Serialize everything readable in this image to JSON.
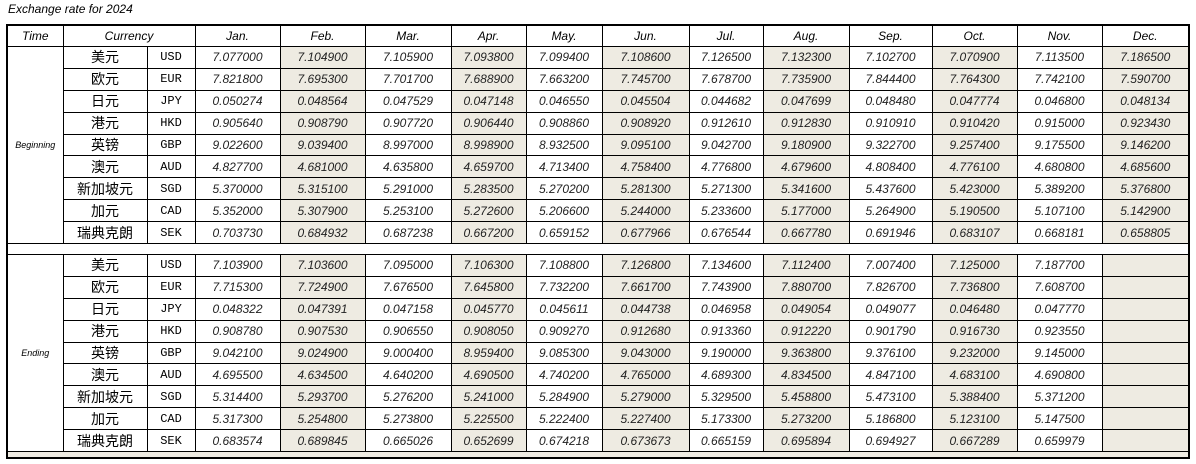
{
  "title": "Exchange rate for 2024",
  "headers": {
    "time": "Time",
    "currency": "Currency"
  },
  "months": [
    "Jan.",
    "Feb.",
    "Mar.",
    "Apr.",
    "May.",
    "Jun.",
    "Jul.",
    "Aug.",
    "Sep.",
    "Oct.",
    "Nov.",
    "Dec."
  ],
  "colors": {
    "shaded_column": "#eeebe2"
  },
  "sections": [
    {
      "label": "Beginning",
      "rows": [
        {
          "name": "美元",
          "code": "USD",
          "values": [
            "7.077000",
            "7.104900",
            "7.105900",
            "7.093800",
            "7.099400",
            "7.108600",
            "7.126500",
            "7.132300",
            "7.102700",
            "7.070900",
            "7.113500",
            "7.186500"
          ]
        },
        {
          "name": "欧元",
          "code": "EUR",
          "values": [
            "7.821800",
            "7.695300",
            "7.701700",
            "7.688900",
            "7.663200",
            "7.745700",
            "7.678700",
            "7.735900",
            "7.844400",
            "7.764300",
            "7.742100",
            "7.590700"
          ]
        },
        {
          "name": "日元",
          "code": "JPY",
          "values": [
            "0.050274",
            "0.048564",
            "0.047529",
            "0.047148",
            "0.046550",
            "0.045504",
            "0.044682",
            "0.047699",
            "0.048480",
            "0.047774",
            "0.046800",
            "0.048134"
          ]
        },
        {
          "name": "港元",
          "code": "HKD",
          "values": [
            "0.905640",
            "0.908790",
            "0.907720",
            "0.906440",
            "0.908860",
            "0.908920",
            "0.912610",
            "0.912830",
            "0.910910",
            "0.910420",
            "0.915000",
            "0.923430"
          ]
        },
        {
          "name": "英镑",
          "code": "GBP",
          "values": [
            "9.022600",
            "9.039400",
            "8.997000",
            "8.998900",
            "8.932500",
            "9.095100",
            "9.042700",
            "9.180900",
            "9.322700",
            "9.257400",
            "9.175500",
            "9.146200"
          ]
        },
        {
          "name": "澳元",
          "code": "AUD",
          "values": [
            "4.827700",
            "4.681000",
            "4.635800",
            "4.659700",
            "4.713400",
            "4.758400",
            "4.776800",
            "4.679600",
            "4.808400",
            "4.776100",
            "4.680800",
            "4.685600"
          ]
        },
        {
          "name": "新加坡元",
          "code": "SGD",
          "values": [
            "5.370000",
            "5.315100",
            "5.291000",
            "5.283500",
            "5.270200",
            "5.281300",
            "5.271300",
            "5.341600",
            "5.437600",
            "5.423000",
            "5.389200",
            "5.376800"
          ]
        },
        {
          "name": "加元",
          "code": "CAD",
          "values": [
            "5.352000",
            "5.307900",
            "5.253100",
            "5.272600",
            "5.206600",
            "5.244000",
            "5.233600",
            "5.177000",
            "5.264900",
            "5.190500",
            "5.107100",
            "5.142900"
          ]
        },
        {
          "name": "瑞典克朗",
          "code": "SEK",
          "values": [
            "0.703730",
            "0.684932",
            "0.687238",
            "0.667200",
            "0.659152",
            "0.677966",
            "0.676544",
            "0.667780",
            "0.691946",
            "0.683107",
            "0.668181",
            "0.658805"
          ]
        }
      ]
    },
    {
      "label": "Ending",
      "rows": [
        {
          "name": "美元",
          "code": "USD",
          "values": [
            "7.103900",
            "7.103600",
            "7.095000",
            "7.106300",
            "7.108800",
            "7.126800",
            "7.134600",
            "7.112400",
            "7.007400",
            "7.125000",
            "7.187700",
            ""
          ]
        },
        {
          "name": "欧元",
          "code": "EUR",
          "values": [
            "7.715300",
            "7.724900",
            "7.676500",
            "7.645800",
            "7.732200",
            "7.661700",
            "7.743900",
            "7.880700",
            "7.826700",
            "7.736800",
            "7.608700",
            ""
          ]
        },
        {
          "name": "日元",
          "code": "JPY",
          "values": [
            "0.048322",
            "0.047391",
            "0.047158",
            "0.045770",
            "0.045611",
            "0.044738",
            "0.046958",
            "0.049054",
            "0.049077",
            "0.046480",
            "0.047770",
            ""
          ]
        },
        {
          "name": "港元",
          "code": "HKD",
          "values": [
            "0.908780",
            "0.907530",
            "0.906550",
            "0.908050",
            "0.909270",
            "0.912680",
            "0.913360",
            "0.912220",
            "0.901790",
            "0.916730",
            "0.923550",
            ""
          ]
        },
        {
          "name": "英镑",
          "code": "GBP",
          "values": [
            "9.042100",
            "9.024900",
            "9.000400",
            "8.959400",
            "9.085300",
            "9.043000",
            "9.190000",
            "9.363800",
            "9.376100",
            "9.232000",
            "9.145000",
            ""
          ]
        },
        {
          "name": "澳元",
          "code": "AUD",
          "values": [
            "4.695500",
            "4.634500",
            "4.640200",
            "4.690500",
            "4.740200",
            "4.765000",
            "4.689300",
            "4.834500",
            "4.847100",
            "4.683100",
            "4.690800",
            ""
          ]
        },
        {
          "name": "新加坡元",
          "code": "SGD",
          "values": [
            "5.314400",
            "5.293700",
            "5.276200",
            "5.241000",
            "5.284900",
            "5.279000",
            "5.329500",
            "5.458800",
            "5.473100",
            "5.388400",
            "5.371200",
            ""
          ]
        },
        {
          "name": "加元",
          "code": "CAD",
          "values": [
            "5.317300",
            "5.254800",
            "5.273800",
            "5.225500",
            "5.222400",
            "5.227400",
            "5.173300",
            "5.273200",
            "5.186800",
            "5.123100",
            "5.147500",
            ""
          ]
        },
        {
          "name": "瑞典克朗",
          "code": "SEK",
          "values": [
            "0.683574",
            "0.689845",
            "0.665026",
            "0.652699",
            "0.674218",
            "0.673673",
            "0.665159",
            "0.695894",
            "0.694927",
            "0.667289",
            "0.659979",
            ""
          ]
        }
      ]
    }
  ]
}
